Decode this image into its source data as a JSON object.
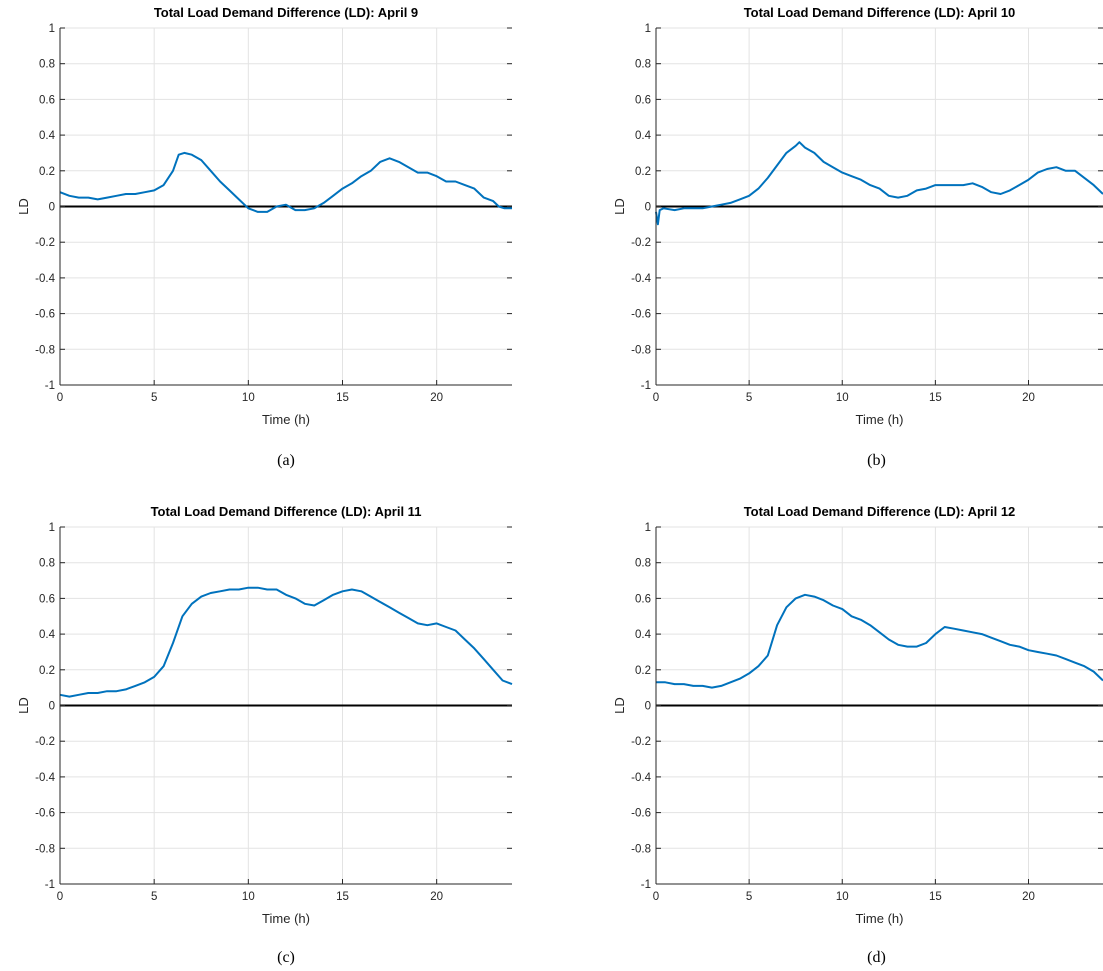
{
  "figure": {
    "subfigure_labels": [
      "(a)",
      "(b)",
      "(c)",
      "(d)"
    ]
  },
  "chart_data": [
    {
      "type": "line",
      "title": "Total Load Demand Difference (LD): April 9",
      "xlabel": "Time (h)",
      "ylabel": "LD",
      "xlim": [
        0,
        24
      ],
      "ylim": [
        -1,
        1
      ],
      "xticks": [
        "0",
        "5",
        "10",
        "15",
        "20"
      ],
      "yticks": [
        "-1",
        "-0.8",
        "-0.6",
        "-0.4",
        "-0.2",
        "0",
        "0.2",
        "0.4",
        "0.6",
        "0.8",
        "1"
      ],
      "grid": true,
      "line_color": "#0072BD",
      "reference_line": {
        "y": 0,
        "color": "#000000"
      },
      "x": [
        0,
        0.5,
        1,
        1.5,
        2,
        2.5,
        3,
        3.5,
        4,
        4.5,
        5,
        5.5,
        6,
        6.3,
        6.6,
        7,
        7.5,
        8,
        8.5,
        9,
        9.5,
        10,
        10.5,
        11,
        11.5,
        12,
        12.5,
        13,
        13.5,
        14,
        14.5,
        15,
        15.5,
        16,
        16.5,
        17,
        17.5,
        18,
        18.5,
        19,
        19.5,
        20,
        20.5,
        21,
        21.5,
        22,
        22.5,
        23,
        23.3,
        23.6,
        24
      ],
      "y": [
        0.08,
        0.06,
        0.05,
        0.05,
        0.04,
        0.05,
        0.06,
        0.07,
        0.07,
        0.08,
        0.09,
        0.12,
        0.2,
        0.29,
        0.3,
        0.29,
        0.26,
        0.2,
        0.14,
        0.09,
        0.04,
        -0.01,
        -0.03,
        -0.03,
        0.0,
        0.01,
        -0.02,
        -0.02,
        -0.01,
        0.02,
        0.06,
        0.1,
        0.13,
        0.17,
        0.2,
        0.25,
        0.27,
        0.25,
        0.22,
        0.19,
        0.19,
        0.17,
        0.14,
        0.14,
        0.12,
        0.1,
        0.05,
        0.03,
        0.0,
        -0.01,
        -0.01
      ]
    },
    {
      "type": "line",
      "title": "Total Load Demand Difference (LD): April 10",
      "xlabel": "Time (h)",
      "ylabel": "LD",
      "xlim": [
        0,
        24
      ],
      "ylim": [
        -1,
        1
      ],
      "xticks": [
        "0",
        "5",
        "10",
        "15",
        "20"
      ],
      "yticks": [
        "-1",
        "-0.8",
        "-0.6",
        "-0.4",
        "-0.2",
        "0",
        "0.2",
        "0.4",
        "0.6",
        "0.8",
        "1"
      ],
      "grid": true,
      "line_color": "#0072BD",
      "reference_line": {
        "y": 0,
        "color": "#000000"
      },
      "x": [
        0,
        0.1,
        0.2,
        0.4,
        1,
        1.5,
        2,
        2.5,
        3,
        3.5,
        4,
        4.5,
        5,
        5.5,
        6,
        6.5,
        7,
        7.5,
        7.7,
        8,
        8.5,
        9,
        9.5,
        10,
        10.5,
        11,
        11.5,
        12,
        12.5,
        13,
        13.5,
        14,
        14.5,
        15,
        15.5,
        16,
        16.5,
        17,
        17.5,
        18,
        18.5,
        19,
        19.5,
        20,
        20.5,
        21,
        21.5,
        22,
        22.5,
        23,
        23.5,
        24
      ],
      "y": [
        -0.03,
        -0.1,
        -0.02,
        -0.01,
        -0.02,
        -0.01,
        -0.01,
        -0.01,
        0.0,
        0.01,
        0.02,
        0.04,
        0.06,
        0.1,
        0.16,
        0.23,
        0.3,
        0.34,
        0.36,
        0.33,
        0.3,
        0.25,
        0.22,
        0.19,
        0.17,
        0.15,
        0.12,
        0.1,
        0.06,
        0.05,
        0.06,
        0.09,
        0.1,
        0.12,
        0.12,
        0.12,
        0.12,
        0.13,
        0.11,
        0.08,
        0.07,
        0.09,
        0.12,
        0.15,
        0.19,
        0.21,
        0.22,
        0.2,
        0.2,
        0.16,
        0.12,
        0.07
      ]
    },
    {
      "type": "line",
      "title": "Total Load Demand Difference (LD): April 11",
      "xlabel": "Time (h)",
      "ylabel": "LD",
      "xlim": [
        0,
        24
      ],
      "ylim": [
        -1,
        1
      ],
      "xticks": [
        "0",
        "5",
        "10",
        "15",
        "20"
      ],
      "yticks": [
        "-1",
        "-0.8",
        "-0.6",
        "-0.4",
        "-0.2",
        "0",
        "0.2",
        "0.4",
        "0.6",
        "0.8",
        "1"
      ],
      "grid": true,
      "line_color": "#0072BD",
      "reference_line": {
        "y": 0,
        "color": "#000000"
      },
      "x": [
        0,
        0.5,
        1,
        1.5,
        2,
        2.5,
        3,
        3.5,
        4,
        4.5,
        5,
        5.5,
        6,
        6.5,
        7,
        7.5,
        8,
        8.5,
        9,
        9.5,
        10,
        10.5,
        11,
        11.5,
        12,
        12.5,
        13,
        13.5,
        14,
        14.5,
        15,
        15.5,
        16,
        16.5,
        17,
        17.5,
        18,
        18.5,
        19,
        19.5,
        20,
        20.5,
        21,
        21.5,
        22,
        22.5,
        23,
        23.5,
        24
      ],
      "y": [
        0.06,
        0.05,
        0.06,
        0.07,
        0.07,
        0.08,
        0.08,
        0.09,
        0.11,
        0.13,
        0.16,
        0.22,
        0.35,
        0.5,
        0.57,
        0.61,
        0.63,
        0.64,
        0.65,
        0.65,
        0.66,
        0.66,
        0.65,
        0.65,
        0.62,
        0.6,
        0.57,
        0.56,
        0.59,
        0.62,
        0.64,
        0.65,
        0.64,
        0.61,
        0.58,
        0.55,
        0.52,
        0.49,
        0.46,
        0.45,
        0.46,
        0.44,
        0.42,
        0.37,
        0.32,
        0.26,
        0.2,
        0.14,
        0.12
      ]
    },
    {
      "type": "line",
      "title": "Total Load Demand Difference (LD): April 12",
      "xlabel": "Time (h)",
      "ylabel": "LD",
      "xlim": [
        0,
        24
      ],
      "ylim": [
        -1,
        1
      ],
      "xticks": [
        "0",
        "5",
        "10",
        "15",
        "20"
      ],
      "yticks": [
        "-1",
        "-0.8",
        "-0.6",
        "-0.4",
        "-0.2",
        "0",
        "0.2",
        "0.4",
        "0.6",
        "0.8",
        "1"
      ],
      "grid": true,
      "line_color": "#0072BD",
      "reference_line": {
        "y": 0,
        "color": "#000000"
      },
      "x": [
        0,
        0.5,
        1,
        1.5,
        2,
        2.5,
        3,
        3.5,
        4,
        4.5,
        5,
        5.5,
        6,
        6.5,
        7,
        7.5,
        8,
        8.5,
        9,
        9.5,
        10,
        10.5,
        11,
        11.5,
        12,
        12.5,
        13,
        13.5,
        14,
        14.5,
        15,
        15.5,
        16,
        16.5,
        17,
        17.5,
        18,
        18.5,
        19,
        19.5,
        20,
        20.5,
        21,
        21.5,
        22,
        22.5,
        23,
        23.5,
        24
      ],
      "y": [
        0.13,
        0.13,
        0.12,
        0.12,
        0.11,
        0.11,
        0.1,
        0.11,
        0.13,
        0.15,
        0.18,
        0.22,
        0.28,
        0.45,
        0.55,
        0.6,
        0.62,
        0.61,
        0.59,
        0.56,
        0.54,
        0.5,
        0.48,
        0.45,
        0.41,
        0.37,
        0.34,
        0.33,
        0.33,
        0.35,
        0.4,
        0.44,
        0.43,
        0.42,
        0.41,
        0.4,
        0.38,
        0.36,
        0.34,
        0.33,
        0.31,
        0.3,
        0.29,
        0.28,
        0.26,
        0.24,
        0.22,
        0.19,
        0.14
      ]
    }
  ]
}
